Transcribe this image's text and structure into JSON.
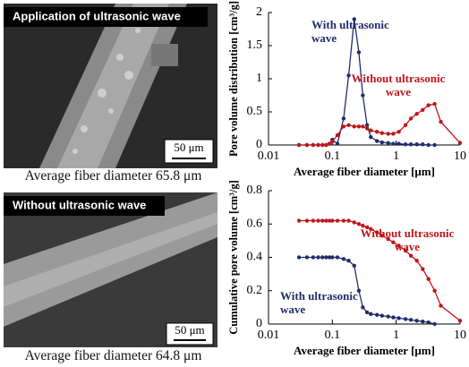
{
  "images": [
    {
      "label": "Application  of ultrasonic wave",
      "scale_bar": "50 μm",
      "caption": "Average fiber diameter  65.8 μm"
    },
    {
      "label": "Without ultrasonic wave",
      "scale_bar": "50 μm",
      "caption": "Average fiber diameter  64.8 μm"
    }
  ],
  "chart_data": [
    {
      "type": "line",
      "ylabel": "Pore volume distribution  [cm³/g]",
      "xlabel": "Average fiber diameter  [μm]",
      "xscale": "log",
      "xlim": [
        0.01,
        10
      ],
      "xticks": [
        0.01,
        0.1,
        1,
        10
      ],
      "ylim": [
        0,
        2
      ],
      "yticks": [
        0,
        0.5,
        1,
        1.5,
        2
      ],
      "series": [
        {
          "name": "With ultrasonic wave",
          "color": "#1f2d6b",
          "x": [
            0.03,
            0.04,
            0.05,
            0.06,
            0.07,
            0.08,
            0.09,
            0.1,
            0.12,
            0.15,
            0.18,
            0.22,
            0.26,
            0.3,
            0.35,
            0.4,
            0.5,
            0.6,
            0.75,
            0.9,
            1.1,
            1.4,
            1.7,
            2.1,
            2.6,
            3.2,
            4
          ],
          "values": [
            0,
            0,
            0,
            0,
            0,
            0,
            0.02,
            0.08,
            0.02,
            0.4,
            1.05,
            1.9,
            1.4,
            0.75,
            0.3,
            0.12,
            0.06,
            0.04,
            0.03,
            0.02,
            0.02,
            0.01,
            0.01,
            0.01,
            0.01,
            0,
            0
          ]
        },
        {
          "name": "Without ultrasonic wave",
          "color": "#c0161b",
          "x": [
            0.03,
            0.04,
            0.05,
            0.06,
            0.07,
            0.08,
            0.09,
            0.1,
            0.12,
            0.15,
            0.18,
            0.22,
            0.26,
            0.3,
            0.35,
            0.4,
            0.5,
            0.6,
            0.75,
            0.9,
            1.1,
            1.4,
            1.7,
            2.1,
            2.6,
            3.2,
            4,
            5,
            10
          ],
          "values": [
            0,
            0,
            0,
            0,
            0,
            0,
            0.02,
            0.05,
            0.15,
            0.28,
            0.3,
            0.28,
            0.28,
            0.28,
            0.25,
            0.22,
            0.2,
            0.18,
            0.17,
            0.17,
            0.2,
            0.3,
            0.4,
            0.47,
            0.53,
            0.6,
            0.62,
            0.35,
            0.03
          ]
        }
      ]
    },
    {
      "type": "line",
      "ylabel": "Cumulative pore volume [cm³/g]",
      "xlabel": "Average fiber diameter  [μm]",
      "xscale": "log",
      "xlim": [
        0.01,
        10
      ],
      "xticks": [
        0.01,
        0.1,
        1,
        10
      ],
      "ylim": [
        0,
        0.8
      ],
      "yticks": [
        0,
        0.2,
        0.4,
        0.6,
        0.8
      ],
      "series": [
        {
          "name": "Without ultrasonic wave",
          "color": "#c0161b",
          "x": [
            0.03,
            0.04,
            0.05,
            0.06,
            0.07,
            0.08,
            0.09,
            0.1,
            0.12,
            0.15,
            0.18,
            0.22,
            0.26,
            0.3,
            0.35,
            0.4,
            0.5,
            0.6,
            0.75,
            0.9,
            1.1,
            1.4,
            1.7,
            2.1,
            2.6,
            3.2,
            4,
            5,
            10
          ],
          "values": [
            0.62,
            0.62,
            0.62,
            0.62,
            0.62,
            0.62,
            0.62,
            0.62,
            0.62,
            0.62,
            0.62,
            0.61,
            0.6,
            0.59,
            0.58,
            0.57,
            0.55,
            0.53,
            0.51,
            0.49,
            0.47,
            0.44,
            0.41,
            0.38,
            0.33,
            0.27,
            0.2,
            0.11,
            0.02
          ]
        },
        {
          "name": "With ultrasonic wave",
          "color": "#1f2d6b",
          "x": [
            0.03,
            0.04,
            0.05,
            0.06,
            0.07,
            0.08,
            0.09,
            0.1,
            0.12,
            0.15,
            0.18,
            0.22,
            0.26,
            0.3,
            0.35,
            0.4,
            0.5,
            0.6,
            0.75,
            0.9,
            1.1,
            1.4,
            1.7,
            2.1,
            2.6,
            3.2,
            4
          ],
          "values": [
            0.4,
            0.4,
            0.4,
            0.4,
            0.4,
            0.4,
            0.4,
            0.4,
            0.4,
            0.39,
            0.38,
            0.35,
            0.2,
            0.1,
            0.07,
            0.06,
            0.055,
            0.05,
            0.045,
            0.04,
            0.035,
            0.03,
            0.025,
            0.02,
            0.015,
            0.01,
            0
          ]
        }
      ]
    }
  ]
}
